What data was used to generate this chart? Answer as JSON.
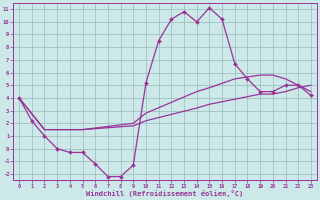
{
  "xlabel": "Windchill (Refroidissement éolien,°C)",
  "bg_color": "#cce8e8",
  "line_color": "#993399",
  "grid_color": "#99bbbb",
  "spine_color": "#993399",
  "xlim": [
    -0.5,
    23.5
  ],
  "ylim": [
    -2.5,
    11.5
  ],
  "xticks": [
    0,
    1,
    2,
    3,
    4,
    5,
    6,
    7,
    8,
    9,
    10,
    11,
    12,
    13,
    14,
    15,
    16,
    17,
    18,
    19,
    20,
    21,
    22,
    23
  ],
  "yticks": [
    -2,
    -1,
    0,
    1,
    2,
    3,
    4,
    5,
    6,
    7,
    8,
    9,
    10,
    11
  ],
  "line1_x": [
    0,
    1,
    2,
    3,
    4,
    5,
    6,
    7,
    8,
    9,
    10,
    11,
    12,
    13,
    14,
    15,
    16,
    17,
    18,
    19,
    20,
    21,
    22,
    23
  ],
  "line1_y": [
    4.0,
    2.2,
    1.0,
    0.0,
    -0.3,
    -0.3,
    -1.2,
    -2.2,
    -2.2,
    -1.3,
    5.2,
    8.5,
    10.2,
    10.8,
    10.0,
    11.1,
    10.2,
    6.7,
    5.5,
    4.5,
    4.5,
    5.0,
    5.0,
    4.2
  ],
  "line2_x": [
    0,
    2,
    3,
    5,
    9,
    10,
    14,
    15,
    17,
    19,
    20,
    21,
    22,
    23
  ],
  "line2_y": [
    4.0,
    1.5,
    1.5,
    1.5,
    1.8,
    2.2,
    3.2,
    3.5,
    3.9,
    4.3,
    4.3,
    4.5,
    4.8,
    5.0
  ],
  "line3_x": [
    0,
    2,
    3,
    5,
    9,
    10,
    14,
    15,
    17,
    19,
    20,
    21,
    22,
    23
  ],
  "line3_y": [
    4.0,
    1.5,
    1.5,
    1.5,
    2.0,
    2.8,
    4.5,
    4.8,
    5.5,
    5.8,
    5.8,
    5.5,
    5.0,
    4.5
  ]
}
